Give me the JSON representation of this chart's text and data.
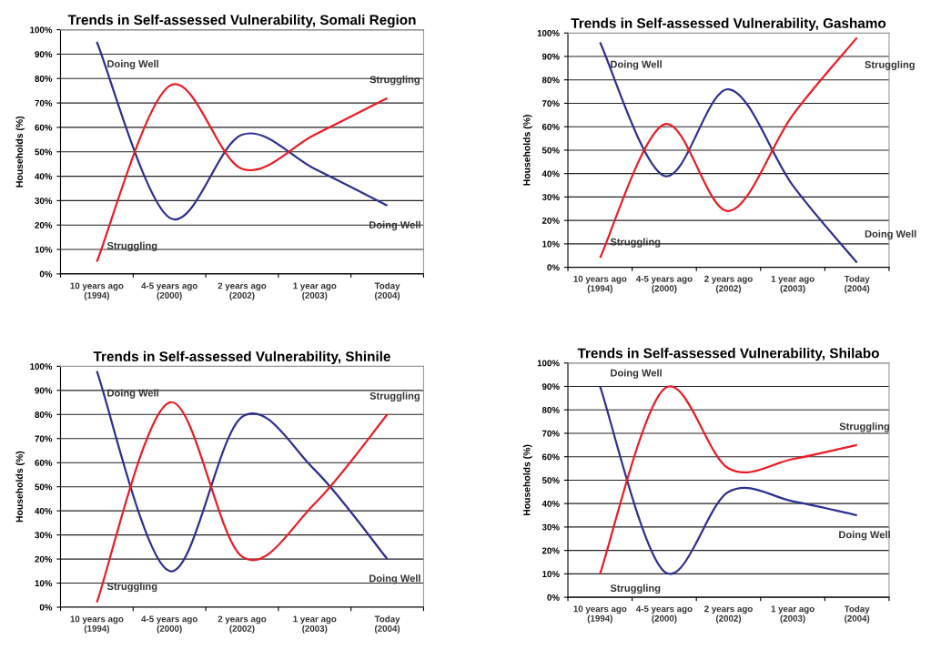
{
  "chart_data": [
    {
      "type": "line",
      "title": "Trends in Self-assessed Vulnerability, Somali Region",
      "ylabel": "Households (%)",
      "categories": [
        "10 years ago\n(1994)",
        "4-5 years ago\n(2000)",
        "2 years ago\n(2002)",
        "1 year ago\n(2003)",
        "Today\n(2004)"
      ],
      "ylim": [
        0,
        100
      ],
      "yticks": [
        {
          "value": 0,
          "label": "0%"
        },
        {
          "value": 10,
          "label": "10%"
        },
        {
          "value": 20,
          "label": "20%"
        },
        {
          "value": 30,
          "label": "30%"
        },
        {
          "value": 40,
          "label": "40%"
        },
        {
          "value": 50,
          "label": "50%"
        },
        {
          "value": 60,
          "label": "60%"
        },
        {
          "value": 70,
          "label": "70%"
        },
        {
          "value": 80,
          "label": "80%"
        },
        {
          "value": 90,
          "label": "90%"
        },
        {
          "value": 100,
          "label": "100%"
        }
      ],
      "grid": "y",
      "legend": false,
      "marker": "none",
      "line_style": "solid",
      "series": [
        {
          "name": "Doing Well",
          "color": "#2e3192",
          "values": [
            95,
            23,
            57,
            43,
            28
          ]
        },
        {
          "name": "Struggling",
          "color": "#ed1c24",
          "values": [
            5,
            77,
            43,
            57,
            72
          ]
        }
      ]
    },
    {
      "type": "line",
      "title": "Trends in Self-assessed Vulnerability, Gashamo",
      "ylabel": "Households (%)",
      "categories": [
        "10 years ago\n(1994)",
        "4-5 years ago\n(2000)",
        "2 years ago\n(2002)",
        "1 year ago\n(2003)",
        "Today\n(2004)"
      ],
      "ylim": [
        0,
        100
      ],
      "yticks": [
        {
          "value": 0,
          "label": "0%"
        },
        {
          "value": 10,
          "label": "10%"
        },
        {
          "value": 20,
          "label": "20%"
        },
        {
          "value": 30,
          "label": "30%"
        },
        {
          "value": 40,
          "label": "40%"
        },
        {
          "value": 50,
          "label": "50%"
        },
        {
          "value": 60,
          "label": "60%"
        },
        {
          "value": 70,
          "label": "70%"
        },
        {
          "value": 80,
          "label": "80%"
        },
        {
          "value": 90,
          "label": "90%"
        },
        {
          "value": 100,
          "label": "100%"
        }
      ],
      "grid": "y",
      "legend": false,
      "marker": "none",
      "line_style": "solid",
      "series": [
        {
          "name": "Doing Well",
          "color": "#2e3192",
          "values": [
            96,
            39,
            76,
            35,
            2
          ]
        },
        {
          "name": "Struggling",
          "color": "#ed1c24",
          "values": [
            4,
            61,
            24,
            65,
            98
          ]
        }
      ]
    },
    {
      "type": "line",
      "title": "Trends in Self-assessed Vulnerability, Shinile",
      "ylabel": "Households (%)",
      "categories": [
        "10 years ago\n(1994)",
        "4-5 years ago\n(2000)",
        "2 years ago\n(2002)",
        "1 year ago\n(2003)",
        "Today\n(2004)"
      ],
      "ylim": [
        0,
        100
      ],
      "yticks": [
        {
          "value": 0,
          "label": "0%"
        },
        {
          "value": 10,
          "label": "10%"
        },
        {
          "value": 20,
          "label": "20%"
        },
        {
          "value": 30,
          "label": "30%"
        },
        {
          "value": 40,
          "label": "40%"
        },
        {
          "value": 50,
          "label": "50%"
        },
        {
          "value": 60,
          "label": "60%"
        },
        {
          "value": 70,
          "label": "70%"
        },
        {
          "value": 80,
          "label": "80%"
        },
        {
          "value": 90,
          "label": "90%"
        },
        {
          "value": 100,
          "label": "100%"
        }
      ],
      "grid": "y",
      "legend": false,
      "marker": "none",
      "line_style": "solid",
      "series": [
        {
          "name": "Doing Well",
          "color": "#2e3192",
          "values": [
            98,
            15,
            79,
            57,
            20
          ]
        },
        {
          "name": "Struggling",
          "color": "#ed1c24",
          "values": [
            2,
            85,
            21,
            43,
            80
          ]
        }
      ]
    },
    {
      "type": "line",
      "title": "Trends in Self-assessed Vulnerability, Shilabo",
      "ylabel": "Households (%)",
      "categories": [
        "10 years ago\n(1994)",
        "4-5 years ago\n(2000)",
        "2 years ago\n(2002)",
        "1 year ago\n(2003)",
        "Today\n(2004)"
      ],
      "ylim": [
        0,
        100
      ],
      "yticks": [
        {
          "value": 0,
          "label": "0%"
        },
        {
          "value": 10,
          "label": "10%"
        },
        {
          "value": 20,
          "label": "20%"
        },
        {
          "value": 30,
          "label": "30%"
        },
        {
          "value": 40,
          "label": "40%"
        },
        {
          "value": 50,
          "label": "50%"
        },
        {
          "value": 60,
          "label": "60%"
        },
        {
          "value": 70,
          "label": "70%"
        },
        {
          "value": 80,
          "label": "80%"
        },
        {
          "value": 90,
          "label": "90%"
        },
        {
          "value": 100,
          "label": "100%"
        }
      ],
      "grid": "y",
      "legend": false,
      "marker": "none",
      "line_style": "solid",
      "series": [
        {
          "name": "Doing Well",
          "color": "#2e3192",
          "values": [
            90,
            11,
            45,
            41,
            35
          ]
        },
        {
          "name": "Struggling",
          "color": "#ed1c24",
          "values": [
            10,
            89,
            55,
            59,
            65
          ]
        }
      ]
    }
  ]
}
